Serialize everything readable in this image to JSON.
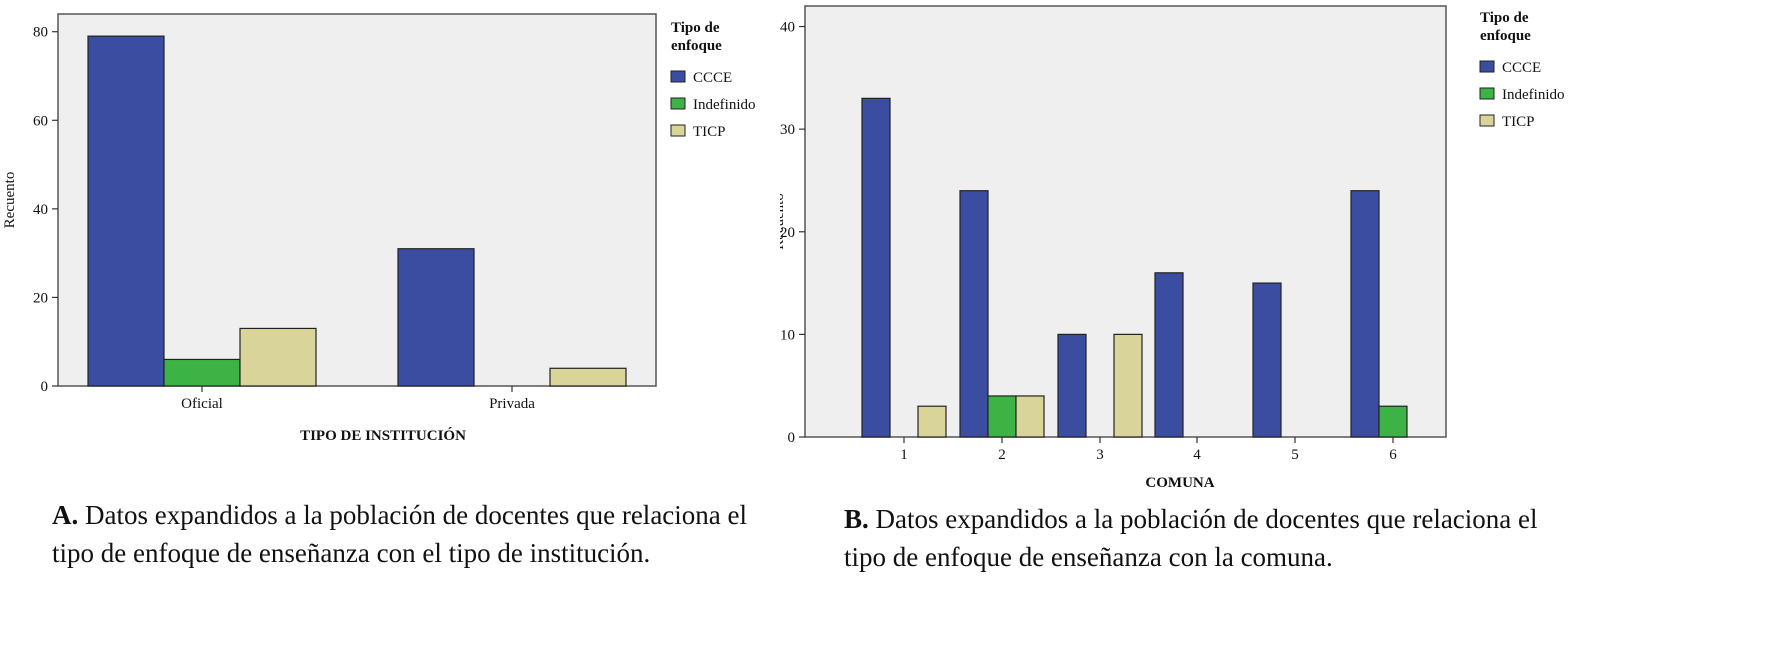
{
  "colors": {
    "CCCE": "#3a4da0",
    "Indefinido": "#3db345",
    "TICP": "#d9d59a",
    "plot_bg": "#efefef"
  },
  "chart_data": [
    {
      "type": "bar",
      "title": "",
      "xlabel": "TIPO DE INSTITUCIÓN",
      "ylabel": "Recuento",
      "ylim": [
        0,
        84
      ],
      "yticks": [
        0,
        20,
        40,
        60,
        80
      ],
      "categories": [
        "Oficial",
        "Privada"
      ],
      "legend_title_lines": [
        "Tipo de",
        "enfoque"
      ],
      "series": [
        {
          "name": "CCCE",
          "values": [
            79,
            31
          ]
        },
        {
          "name": "Indefinido",
          "values": [
            6,
            0
          ]
        },
        {
          "name": "TICP",
          "values": [
            13,
            4
          ]
        }
      ],
      "caption": {
        "letter": "A.",
        "text_line1": "Datos expandidos a la población de docentes que relaciona el",
        "text_line2": "tipo de enfoque de enseñanza con el tipo de institución."
      }
    },
    {
      "type": "bar",
      "title": "",
      "xlabel": "COMUNA",
      "ylabel": "Recuento",
      "ylim": [
        0,
        42
      ],
      "yticks": [
        0,
        10,
        20,
        30,
        40
      ],
      "categories": [
        "1",
        "2",
        "3",
        "4",
        "5",
        "6"
      ],
      "legend_title_lines": [
        "Tipo de",
        "enfoque"
      ],
      "series": [
        {
          "name": "CCCE",
          "values": [
            33,
            24,
            10,
            16,
            15,
            24
          ]
        },
        {
          "name": "Indefinido",
          "values": [
            0,
            4,
            0,
            0,
            0,
            3
          ]
        },
        {
          "name": "TICP",
          "values": [
            3,
            4,
            10,
            0,
            0,
            0
          ]
        }
      ],
      "caption": {
        "letter": "B.",
        "text_line1": "Datos expandidos a la población de docentes que relaciona el",
        "text_line2": "tipo de enfoque de enseñanza con la comuna."
      }
    }
  ]
}
